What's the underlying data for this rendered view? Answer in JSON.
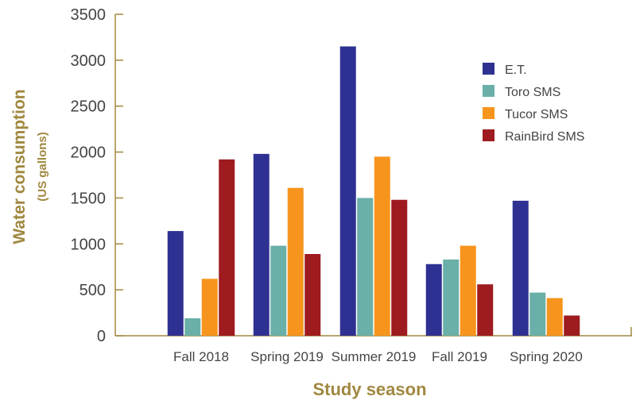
{
  "chart_data": {
    "type": "bar",
    "title": "",
    "xlabel": "Study season",
    "ylabel": "Water consumption",
    "ylabel_sub": "(US gallons)",
    "categories": [
      "Fall 2018",
      "Spring 2019",
      "Summer 2019",
      "Fall 2019",
      "Spring 2020"
    ],
    "series": [
      {
        "name": "E.T.",
        "color": "#2e3192",
        "values": [
          1140,
          1980,
          3150,
          780,
          1470
        ]
      },
      {
        "name": "Toro SMS",
        "color": "#6aafa8",
        "values": [
          190,
          980,
          1500,
          830,
          470
        ]
      },
      {
        "name": "Tucor SMS",
        "color": "#f7941d",
        "values": [
          620,
          1610,
          1950,
          980,
          410
        ]
      },
      {
        "name": "RainBird SMS",
        "color": "#9e1b20",
        "values": [
          1920,
          890,
          1480,
          560,
          220
        ]
      }
    ],
    "ylim": [
      0,
      3500
    ],
    "yticks": [
      "0",
      "500",
      "1000",
      "1500",
      "2000",
      "2500",
      "3000",
      "3500"
    ],
    "legend_position": "top-right",
    "axis_color": "#a08840"
  }
}
